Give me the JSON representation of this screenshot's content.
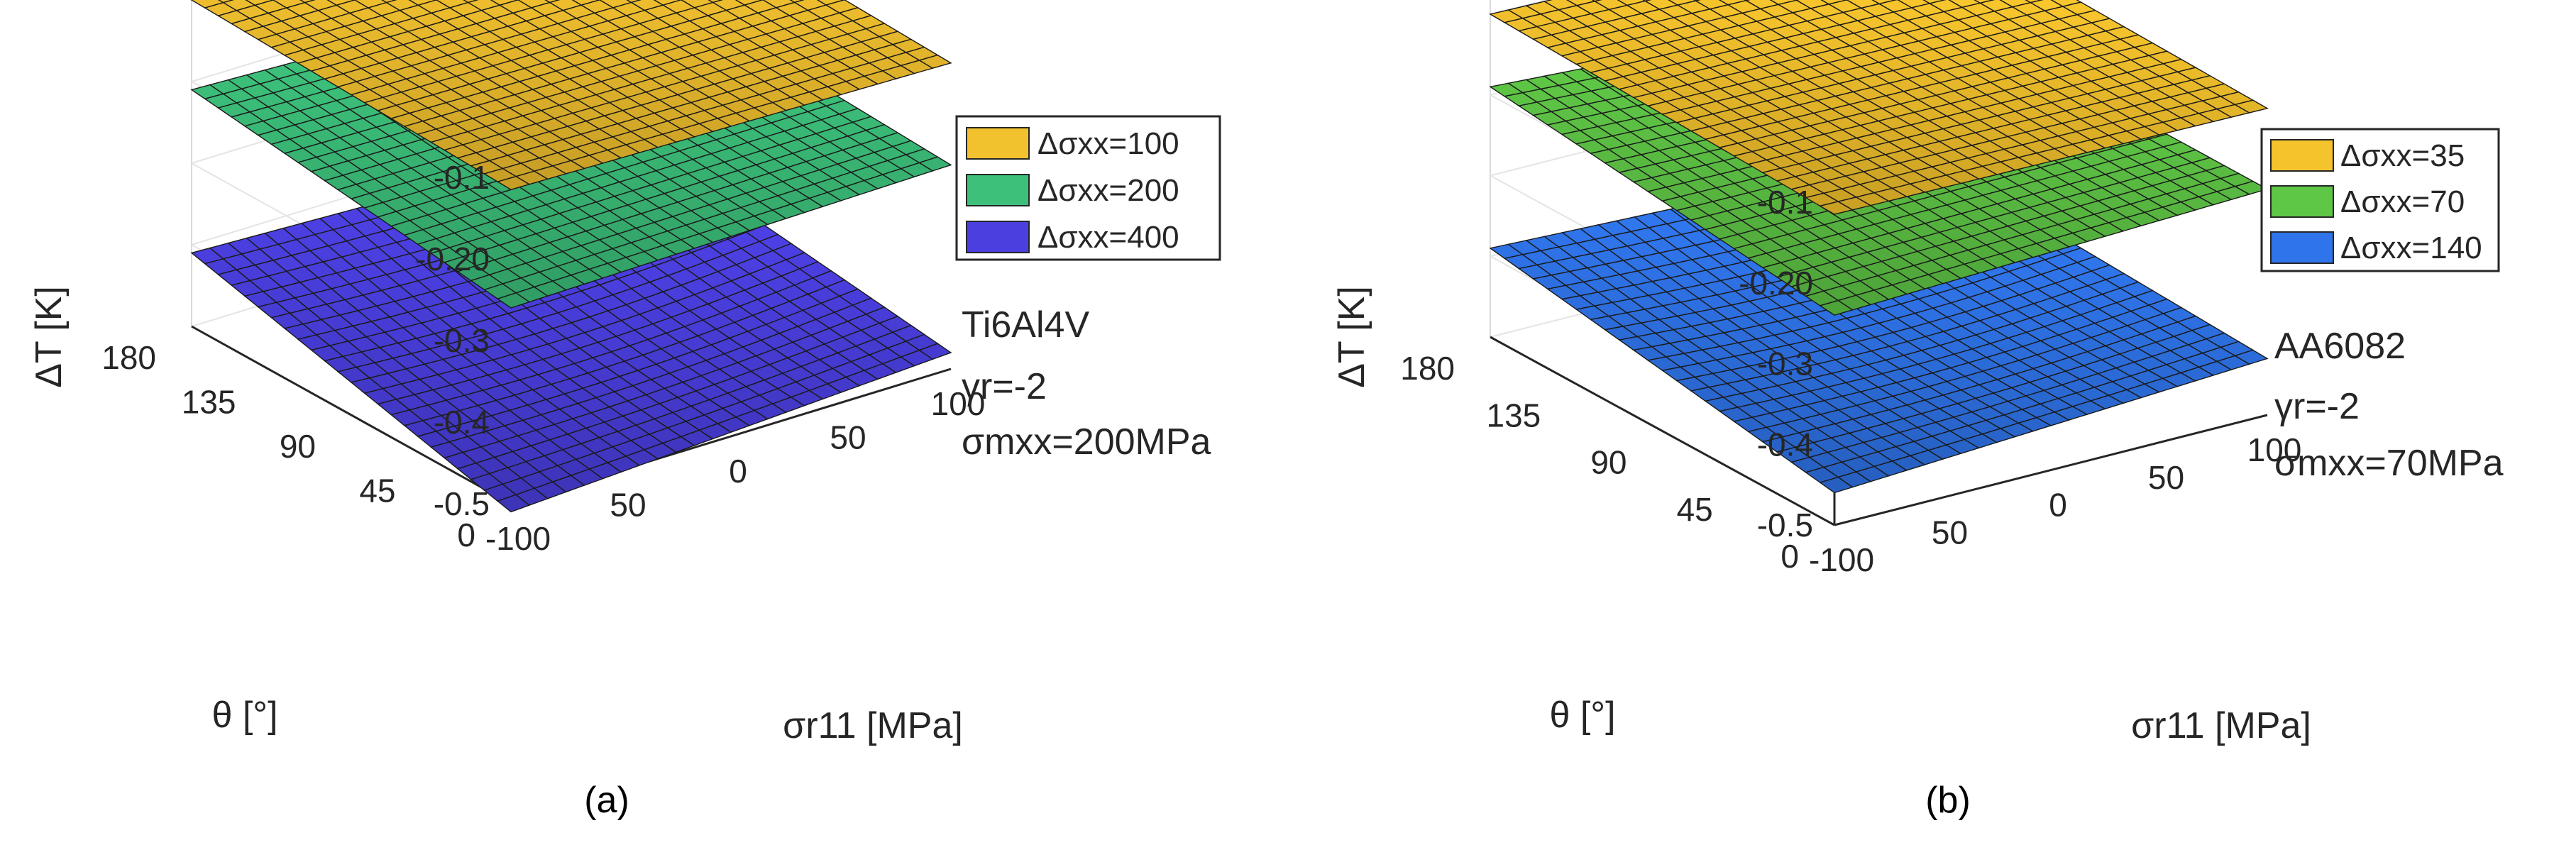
{
  "chart_data": [
    {
      "type": "surface",
      "panel_caption": "(a)",
      "zlabel": "ΔT [K]",
      "xlabel": "σr11 [MPa]",
      "ylabel": "θ [°]",
      "x_ticks": [
        "-100",
        "50",
        "0",
        "50",
        "100"
      ],
      "y_ticks": [
        "0",
        "45",
        "90",
        "135",
        "180"
      ],
      "z_ticks": [
        "-0.1",
        "-0.20",
        "-0.3",
        "-0.4",
        "-0.5"
      ],
      "xlim": [
        -100,
        100
      ],
      "ylim": [
        0,
        180
      ],
      "zlim": [
        -0.5,
        -0.1
      ],
      "grid": true,
      "legend_position": "top-right",
      "annotations": [
        "Ti6Al4V",
        "γr=-2",
        "σmxx=200MPa"
      ],
      "series": [
        {
          "name": "Δσxx=100",
          "color": "#f2c12e",
          "corner_values": {
            "theta180_sigma-100": -0.1,
            "theta180_sigma100": -0.11,
            "theta0_sigma-100": -0.115,
            "theta0_sigma100": -0.125
          }
        },
        {
          "name": "Δσxx=200",
          "color": "#3cc07a",
          "corner_values": {
            "theta180_sigma-100": -0.21,
            "theta180_sigma100": -0.23,
            "theta0_sigma-100": -0.26,
            "theta0_sigma100": -0.25
          }
        },
        {
          "name": "Δσxx=400",
          "color": "#4b3fe0",
          "corner_values": {
            "theta180_sigma-100": -0.41,
            "theta180_sigma100": -0.43,
            "theta0_sigma-100": -0.51,
            "theta0_sigma100": -0.48
          }
        }
      ]
    },
    {
      "type": "surface",
      "panel_caption": "(b)",
      "zlabel": "ΔT [K]",
      "xlabel": "σr11 [MPa]",
      "ylabel": "θ [°]",
      "x_ticks": [
        "-100",
        "50",
        "0",
        "50",
        "100"
      ],
      "y_ticks": [
        "0",
        "45",
        "90",
        "135",
        "180"
      ],
      "z_ticks": [
        "-0.1",
        "-0.20",
        "-0.3",
        "-0.4",
        "-0.5"
      ],
      "xlim": [
        -100,
        100
      ],
      "ylim": [
        0,
        180
      ],
      "zlim": [
        -0.5,
        -0.1
      ],
      "grid": true,
      "legend_position": "top-right",
      "annotations": [
        "AA6082",
        "γr=-2",
        "σmxx=70MPa"
      ],
      "series": [
        {
          "name": "Δσxx=35",
          "color": "#f5c32c",
          "corner_values": {
            "theta180_sigma-100": -0.1,
            "theta180_sigma100": -0.11,
            "theta0_sigma-100": -0.115,
            "theta0_sigma100": -0.12
          }
        },
        {
          "name": "Δσxx=70",
          "color": "#5fc746",
          "corner_values": {
            "theta180_sigma-100": -0.19,
            "theta180_sigma100": -0.22,
            "theta0_sigma-100": -0.24,
            "theta0_sigma100": -0.22
          }
        },
        {
          "name": "Δσxx=140",
          "color": "#2f74ea",
          "corner_values": {
            "theta180_sigma-100": -0.39,
            "theta180_sigma100": -0.41,
            "theta0_sigma-100": -0.46,
            "theta0_sigma100": -0.43
          }
        }
      ]
    }
  ]
}
